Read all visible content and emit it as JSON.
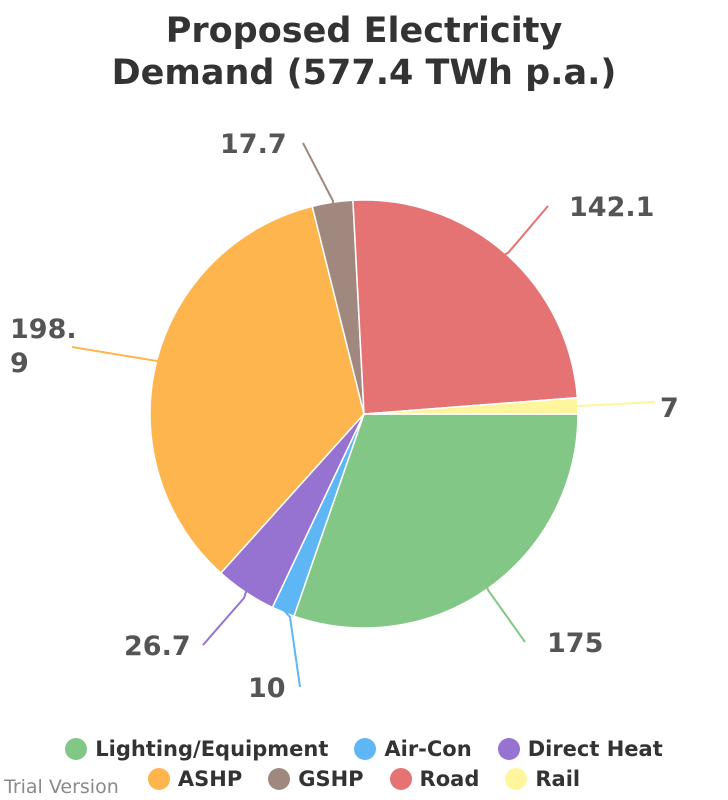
{
  "chart_data": {
    "type": "pie",
    "title_lines": [
      "Proposed Electricity",
      "Demand (577.4 TWh p.a.)"
    ],
    "slices": [
      {
        "name": "Lighting/Equipment",
        "value": 175,
        "label": "175",
        "color": "#82c785"
      },
      {
        "name": "Air-Con",
        "value": 10,
        "label": "10",
        "color": "#5eb6f5"
      },
      {
        "name": "Direct Heat",
        "value": 26.7,
        "label": "26.7",
        "color": "#9673d1"
      },
      {
        "name": "ASHP",
        "value": 198.9,
        "label": "198.9",
        "color": "#ffb54d"
      },
      {
        "name": "GSHP",
        "value": 17.7,
        "label": "17.7",
        "color": "#a1887f"
      },
      {
        "name": "Road",
        "value": 142.1,
        "label": "142.1",
        "color": "#e57373"
      },
      {
        "name": "Rail",
        "value": 7,
        "label": "7",
        "color": "#fff59d"
      }
    ],
    "start_angle_deg": 90,
    "legend_position": "bottom"
  },
  "legend_rows": [
    [
      {
        "label": "Lighting/Equipment",
        "color": "#82c785"
      },
      {
        "label": "Air-Con",
        "color": "#5eb6f5"
      },
      {
        "label": "Direct Heat",
        "color": "#9673d1"
      }
    ],
    [
      {
        "label": "ASHP",
        "color": "#ffb54d"
      },
      {
        "label": "GSHP",
        "color": "#a1887f"
      },
      {
        "label": "Road",
        "color": "#e57373"
      },
      {
        "label": "Rail",
        "color": "#fff59d"
      }
    ]
  ],
  "watermark": "Trial Version"
}
